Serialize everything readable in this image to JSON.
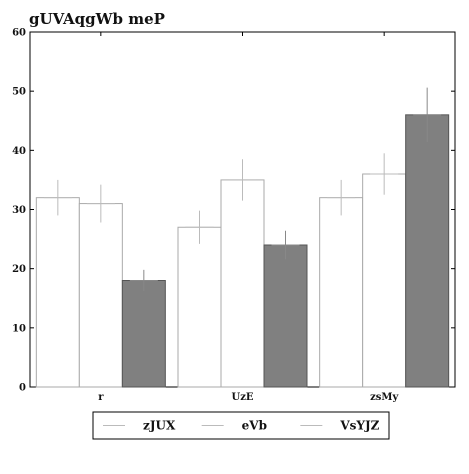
{
  "chart_data": {
    "type": "bar",
    "title": "gUVAqgWb meP",
    "xlabel": "",
    "ylabel": "",
    "categories": [
      "r",
      "UzE",
      "zsMy"
    ],
    "ylim": [
      0,
      60
    ],
    "yticks": [
      0,
      10,
      20,
      30,
      40,
      50,
      60
    ],
    "grid": false,
    "legend_position": "bottom",
    "series": [
      {
        "name": "zJUX",
        "values": [
          32,
          27,
          32
        ],
        "errors": [
          3,
          2.8,
          3
        ],
        "color": "#ffffff"
      },
      {
        "name": "eVb",
        "values": [
          31,
          35,
          36
        ],
        "errors": [
          3.2,
          3.5,
          3.5
        ],
        "color": "#ffffff"
      },
      {
        "name": "VsYJZ",
        "values": [
          18,
          24,
          46
        ],
        "errors": [
          1.8,
          2.4,
          4.6
        ],
        "color": "#808080"
      }
    ]
  }
}
